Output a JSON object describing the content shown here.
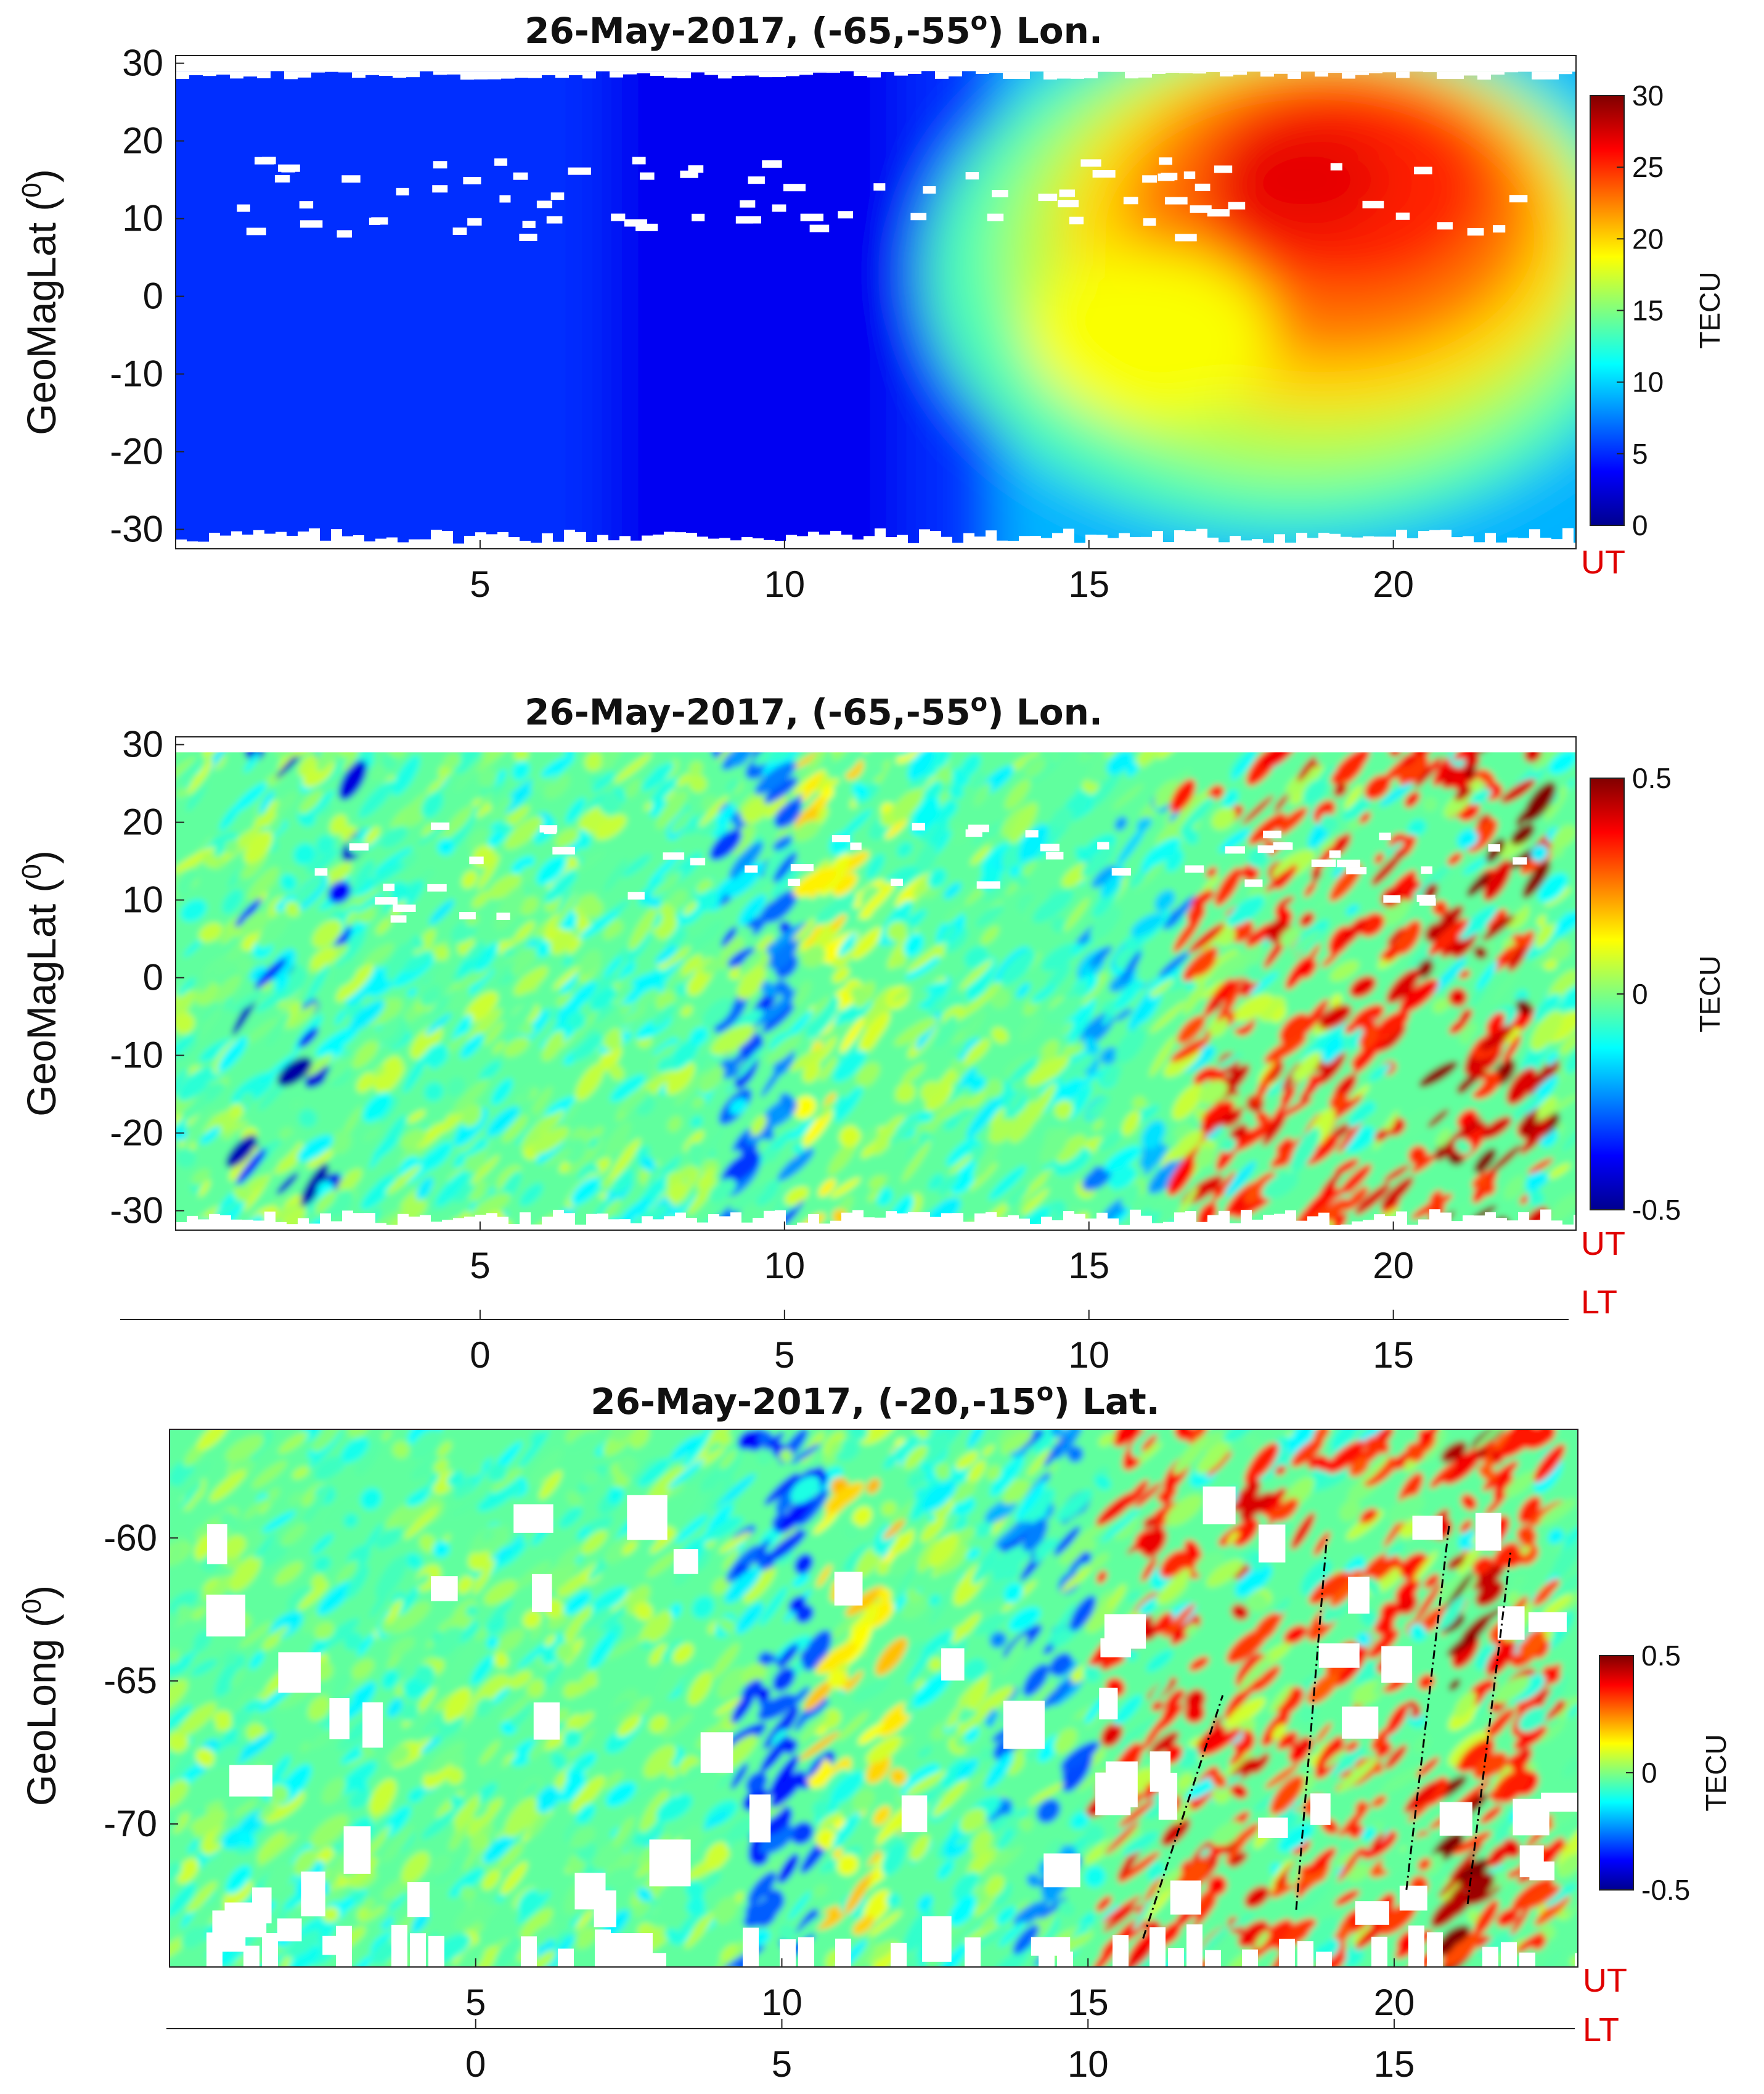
{
  "colors": {
    "jet": [
      "#00008f",
      "#0000ff",
      "#00ffff",
      "#ffff00",
      "#ff0000",
      "#800000"
    ],
    "dashed_line": "#000000",
    "axis_label_red": "#e00000"
  },
  "chart_data": [
    {
      "type": "heatmap",
      "title": "26-May-2017, (-65,-55º) Lon.",
      "title_parts": {
        "before": "26-May-2017, (-65,-55",
        "sup": "o",
        "after": ") Lon."
      },
      "xlabel": "UT",
      "ylabel_parts": {
        "before": "GeoMagLat (",
        "sup": "0",
        "after": ")"
      },
      "xlim": [
        0,
        23
      ],
      "ylim": [
        -32.5,
        31
      ],
      "xticks": [
        5,
        10,
        15,
        20
      ],
      "yticks": [
        -30,
        -20,
        -10,
        0,
        10,
        20,
        30
      ],
      "colorbar": {
        "label": "TECU",
        "limits": [
          0,
          30
        ],
        "ticks": [
          0,
          5,
          10,
          15,
          20,
          25,
          30
        ]
      },
      "description_values": {
        "night_min_TECU": 2,
        "day_max_TECU": 28,
        "crest_ut": [
          16,
          22
        ],
        "crest_lat": [
          -10,
          25
        ]
      }
    },
    {
      "type": "heatmap",
      "title": "26-May-2017, (-65,-55º) Lon.",
      "title_parts": {
        "before": "26-May-2017, (-65,-55",
        "sup": "o",
        "after": ") Lon."
      },
      "xlabel": "UT",
      "xlabel2": "LT",
      "ylabel_parts": {
        "before": "GeoMagLat (",
        "sup": "0",
        "after": ")"
      },
      "xlim": [
        0,
        23
      ],
      "ylim": [
        -32.5,
        31
      ],
      "xticks": [
        5,
        10,
        15,
        20
      ],
      "lt_ticks": [
        0,
        5,
        10,
        15
      ],
      "yticks": [
        -30,
        -20,
        -10,
        0,
        10,
        20,
        30
      ],
      "colorbar": {
        "label": "TECU",
        "limits": [
          -0.5,
          0.5
        ],
        "ticks": [
          -0.5,
          0,
          0.5
        ]
      }
    },
    {
      "type": "heatmap",
      "title": "26-May-2017, (-20,-15º) Lat.",
      "title_parts": {
        "before": "26-May-2017, (-20,-15",
        "sup": "o",
        "after": ") Lat."
      },
      "xlabel": "UT",
      "xlabel2": "LT",
      "ylabel_parts": {
        "before": "GeoLong (",
        "sup": "0",
        "after": ")"
      },
      "xlim": [
        0,
        23
      ],
      "ylim": [
        -75,
        -56.2
      ],
      "xticks": [
        5,
        10,
        15,
        20
      ],
      "lt_ticks": [
        0,
        5,
        10,
        15
      ],
      "yticks": [
        -70,
        -65,
        -60
      ],
      "colorbar": {
        "label": "TECU",
        "limits": [
          -0.5,
          0.5
        ],
        "ticks": [
          -0.5,
          0,
          0.5
        ]
      },
      "dashed_lines_ut_lon": [
        [
          [
            15.9,
            -74.0
          ],
          [
            17.2,
            -65.5
          ]
        ],
        [
          [
            18.4,
            -73.0
          ],
          [
            18.9,
            -60.0
          ]
        ],
        [
          [
            20.2,
            -72.3
          ],
          [
            20.9,
            -59.5
          ]
        ],
        [
          [
            21.2,
            -72.8
          ],
          [
            21.9,
            -60.5
          ]
        ]
      ]
    }
  ]
}
